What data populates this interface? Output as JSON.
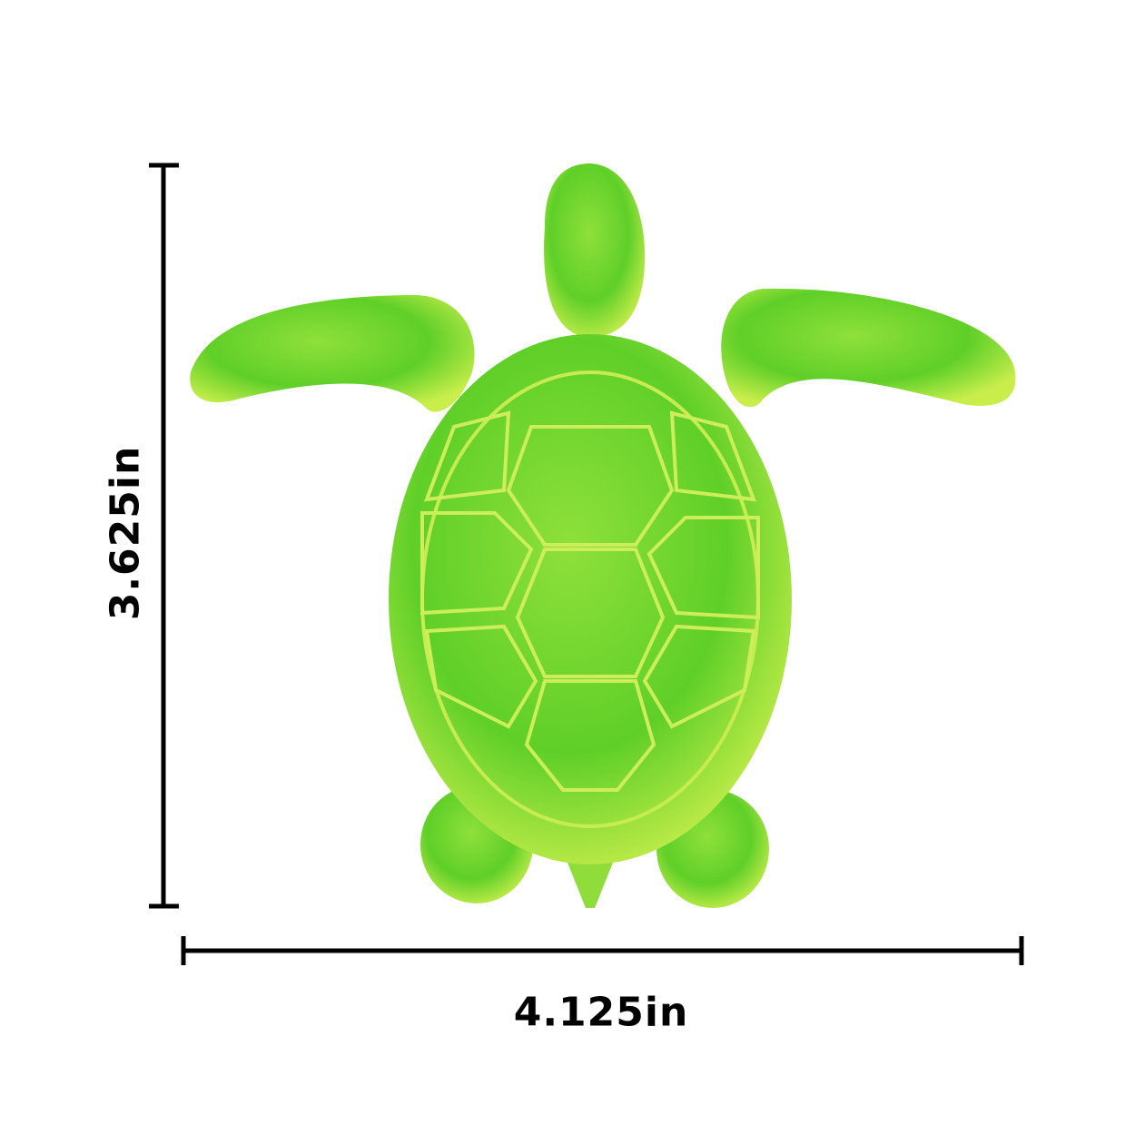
{
  "dimensions": {
    "width_label": "4.125in",
    "height_label": "3.625in"
  },
  "subject": {
    "color_main": "#6fd62a",
    "color_highlight": "#d4f25a",
    "color_shadow": "#3fa81c"
  }
}
